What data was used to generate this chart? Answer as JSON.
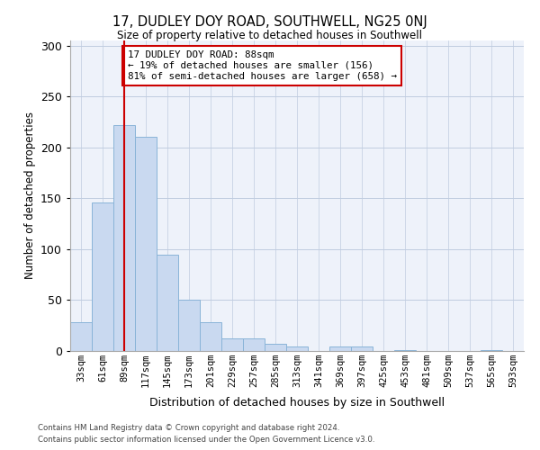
{
  "title": "17, DUDLEY DOY ROAD, SOUTHWELL, NG25 0NJ",
  "subtitle": "Size of property relative to detached houses in Southwell",
  "xlabel": "Distribution of detached houses by size in Southwell",
  "ylabel": "Number of detached properties",
  "bar_color": "#c9d9f0",
  "bar_edge_color": "#8ab4d8",
  "categories": [
    "33sqm",
    "61sqm",
    "89sqm",
    "117sqm",
    "145sqm",
    "173sqm",
    "201sqm",
    "229sqm",
    "257sqm",
    "285sqm",
    "313sqm",
    "341sqm",
    "369sqm",
    "397sqm",
    "425sqm",
    "453sqm",
    "481sqm",
    "509sqm",
    "537sqm",
    "565sqm",
    "593sqm"
  ],
  "values": [
    28,
    146,
    222,
    210,
    95,
    50,
    28,
    12,
    12,
    7,
    4,
    0,
    4,
    4,
    0,
    1,
    0,
    0,
    0,
    1,
    0
  ],
  "vline_x": 2,
  "vline_color": "#cc0000",
  "annotation_text": "17 DUDLEY DOY ROAD: 88sqm\n← 19% of detached houses are smaller (156)\n81% of semi-detached houses are larger (658) →",
  "annotation_box_edgecolor": "#cc0000",
  "ylim": [
    0,
    305
  ],
  "yticks": [
    0,
    50,
    100,
    150,
    200,
    250,
    300
  ],
  "footer_line1": "Contains HM Land Registry data © Crown copyright and database right 2024.",
  "footer_line2": "Contains public sector information licensed under the Open Government Licence v3.0.",
  "background_color": "#eef2fa"
}
